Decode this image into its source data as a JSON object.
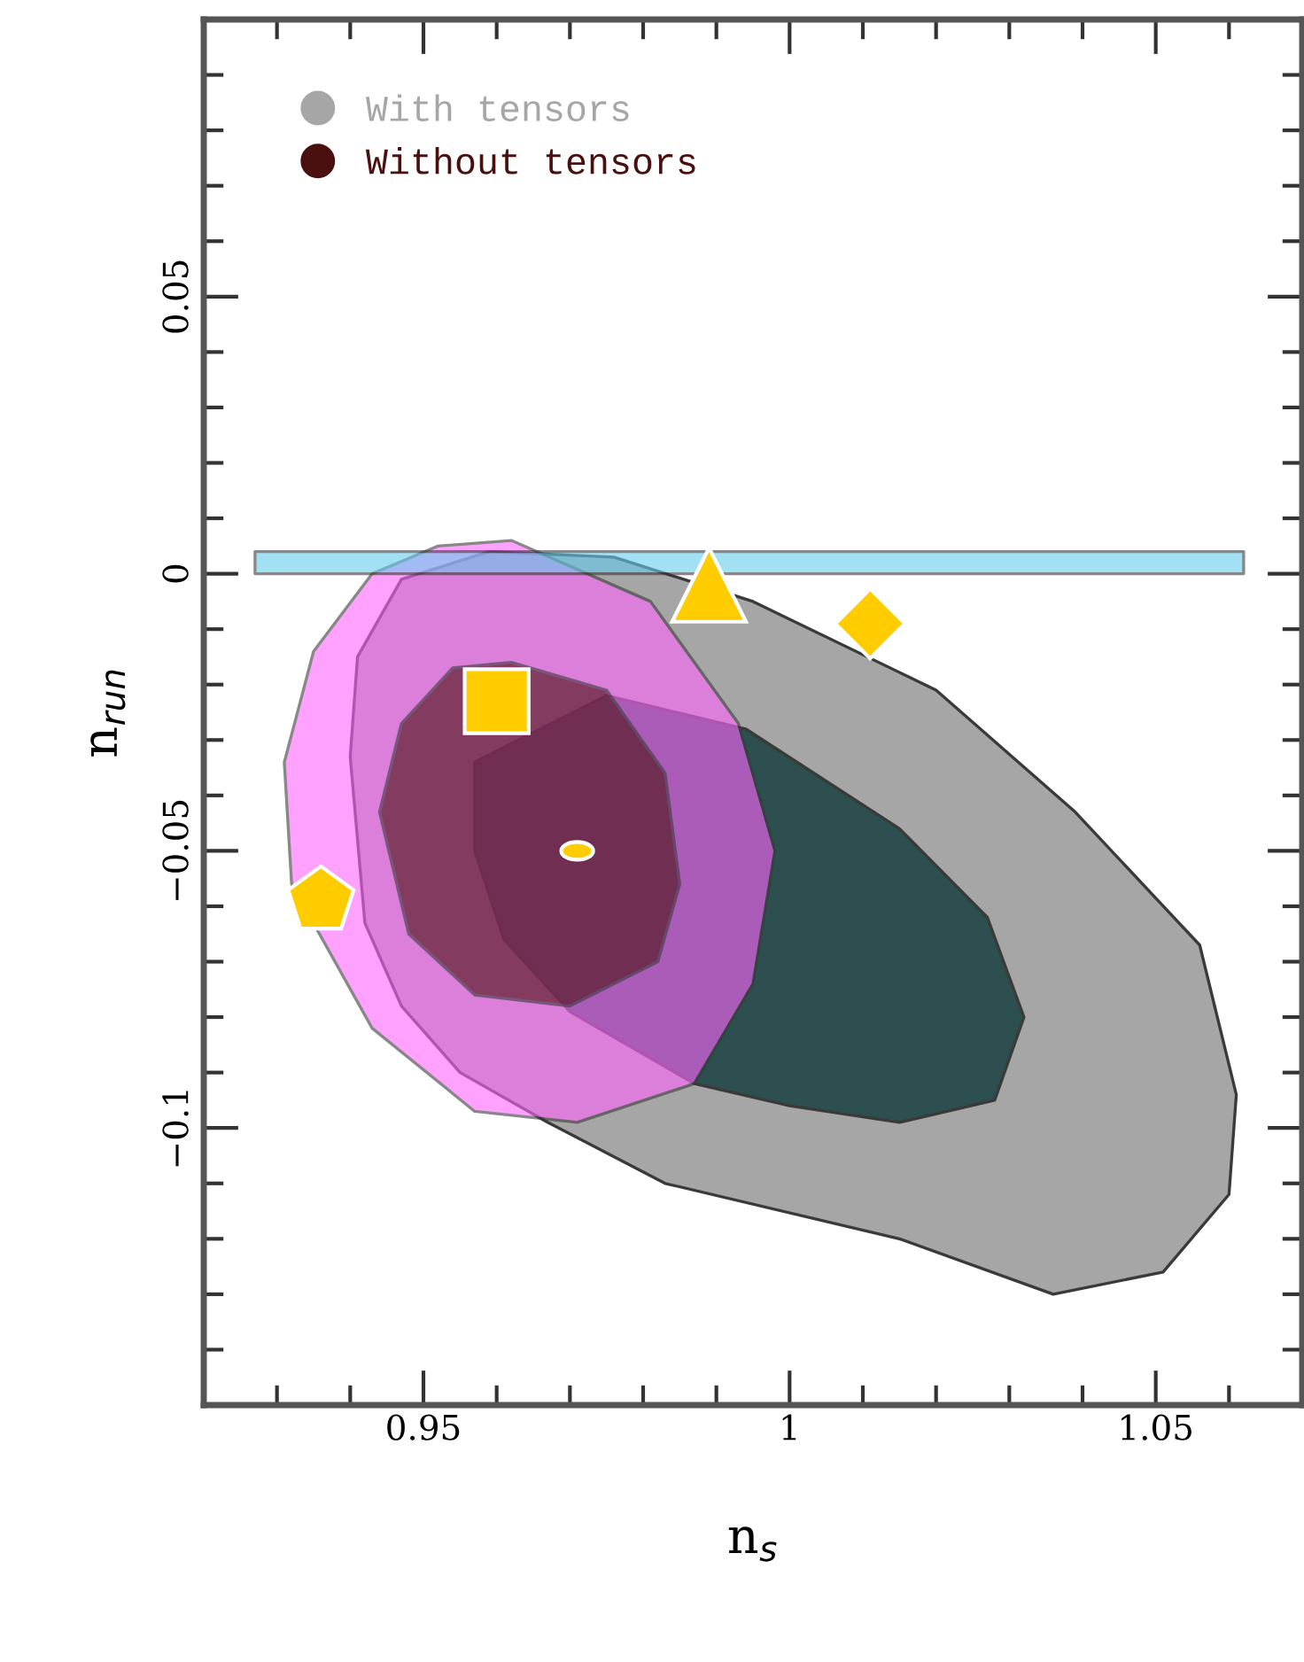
{
  "chart_data": {
    "type": "area",
    "xlabel": "n$_{s}$",
    "ylabel": "n$_{run}$",
    "xlim": [
      0.92,
      1.07
    ],
    "ylim": [
      -0.15,
      0.1
    ],
    "xticks": [
      {
        "value": 0.93,
        "label": null
      },
      {
        "value": 0.94,
        "label": null
      },
      {
        "value": 0.95,
        "label": "0.95"
      },
      {
        "value": 0.96,
        "label": null
      },
      {
        "value": 0.97,
        "label": null
      },
      {
        "value": 0.98,
        "label": null
      },
      {
        "value": 0.99,
        "label": null
      },
      {
        "value": 1,
        "label": "1"
      },
      {
        "value": 1.01,
        "label": null
      },
      {
        "value": 1.02,
        "label": null
      },
      {
        "value": 1.03,
        "label": null
      },
      {
        "value": 1.04,
        "label": null
      },
      {
        "value": 1.05,
        "label": "1.05"
      },
      {
        "value": 1.06,
        "label": null
      }
    ],
    "yticks": [
      {
        "value": -0.14,
        "label": null
      },
      {
        "value": -0.13,
        "label": null
      },
      {
        "value": -0.12,
        "label": null
      },
      {
        "value": -0.11,
        "label": null
      },
      {
        "value": -0.1,
        "label": "−0.1"
      },
      {
        "value": -0.09,
        "label": null
      },
      {
        "value": -0.08,
        "label": null
      },
      {
        "value": -0.07,
        "label": null
      },
      {
        "value": -0.06,
        "label": null
      },
      {
        "value": -0.05,
        "label": "−0.05"
      },
      {
        "value": -0.04,
        "label": null
      },
      {
        "value": -0.03,
        "label": null
      },
      {
        "value": -0.02,
        "label": null
      },
      {
        "value": -0.01,
        "label": null
      },
      0,
      {
        "value": 0.01,
        "label": null
      },
      {
        "value": 0.02,
        "label": null
      },
      {
        "value": 0.03,
        "label": null
      },
      {
        "value": 0.04,
        "label": null
      },
      {
        "value": 0.05,
        "label": "0.05"
      },
      {
        "value": 0.06,
        "label": null
      },
      {
        "value": 0.07,
        "label": null
      },
      {
        "value": 0.08,
        "label": null
      },
      {
        "value": 0.09,
        "label": null
      }
    ],
    "grid": false,
    "legend": "top left",
    "series": [
      {
        "name": "With tensors",
        "color": "#a6a6a6",
        "x": [
          0.967,
          0.983,
          1.015,
          1.036,
          1.051,
          1.06,
          1.061,
          1.056,
          1.039,
          1.02,
          0.995,
          0.976,
          0.959,
          0.947,
          0.941,
          0.94,
          0.942,
          0.947,
          0.955
        ],
        "values": [
          -0.099,
          -0.11,
          -0.12,
          -0.13,
          -0.126,
          -0.112,
          -0.094,
          -0.067,
          -0.043,
          -0.021,
          -0.005,
          0.003,
          0.004,
          -0.001,
          -0.015,
          -0.033,
          -0.063,
          -0.078,
          -0.09
        ]
      },
      {
        "color": "#2e4f4f",
        "x": [
          0.957,
          0.975,
          0.994,
          1.015,
          1.027,
          1.032,
          1.028,
          1.015,
          1.0,
          0.987,
          0.97,
          0.961,
          0.957
        ],
        "values": [
          -0.034,
          -0.022,
          -0.028,
          -0.046,
          -0.062,
          -0.08,
          -0.095,
          -0.099,
          -0.096,
          -0.092,
          -0.079,
          -0.066,
          -0.05
        ]
      },
      {
        "color": "#ff66ff",
        "x": [
          0.962,
          0.981,
          0.993,
          0.998,
          0.995,
          0.987,
          0.971,
          0.957,
          0.943,
          0.932,
          0.931,
          0.935,
          0.943,
          0.952
        ],
        "values": [
          0.006,
          -0.005,
          -0.027,
          -0.05,
          -0.074,
          -0.092,
          -0.099,
          -0.097,
          -0.082,
          -0.056,
          -0.034,
          -0.014,
          0.0,
          0.005
        ]
      },
      {
        "name": "Without tensors",
        "color": "#4a1010",
        "x": [
          0.962,
          0.975,
          0.983,
          0.985,
          0.982,
          0.97,
          0.957,
          0.948,
          0.944,
          0.947,
          0.954
        ],
        "values": [
          -0.016,
          -0.021,
          -0.036,
          -0.056,
          -0.07,
          -0.078,
          -0.076,
          -0.065,
          -0.043,
          -0.027,
          -0.017
        ]
      },
      {
        "color": "#66ccee",
        "x": [
          0.927,
          1.062,
          1.062,
          0.927
        ],
        "values": [
          0,
          0,
          0.004,
          0.004
        ]
      },
      {
        "type": "scatter",
        "marker": "square",
        "color": "#ffcc00",
        "x": [
          0.96
        ],
        "values": [
          -0.023
        ]
      },
      {
        "type": "scatter",
        "color": "#ffcc00",
        "x": [
          0.936
        ],
        "values": [
          -0.059
        ]
      },
      {
        "type": "scatter",
        "marker": "circle",
        "color": "#ffcc00",
        "x": [
          0.971
        ],
        "values": [
          -0.05
        ]
      },
      {
        "type": "scatter",
        "marker": "triangle",
        "color": "#ffcc00",
        "x": [
          0.989
        ],
        "values": [
          -0.002
        ]
      },
      {
        "type": "scatter",
        "marker": "diamond",
        "color": "#ffcc00",
        "x": [
          1.011
        ],
        "values": [
          -0.009
        ]
      }
    ]
  }
}
